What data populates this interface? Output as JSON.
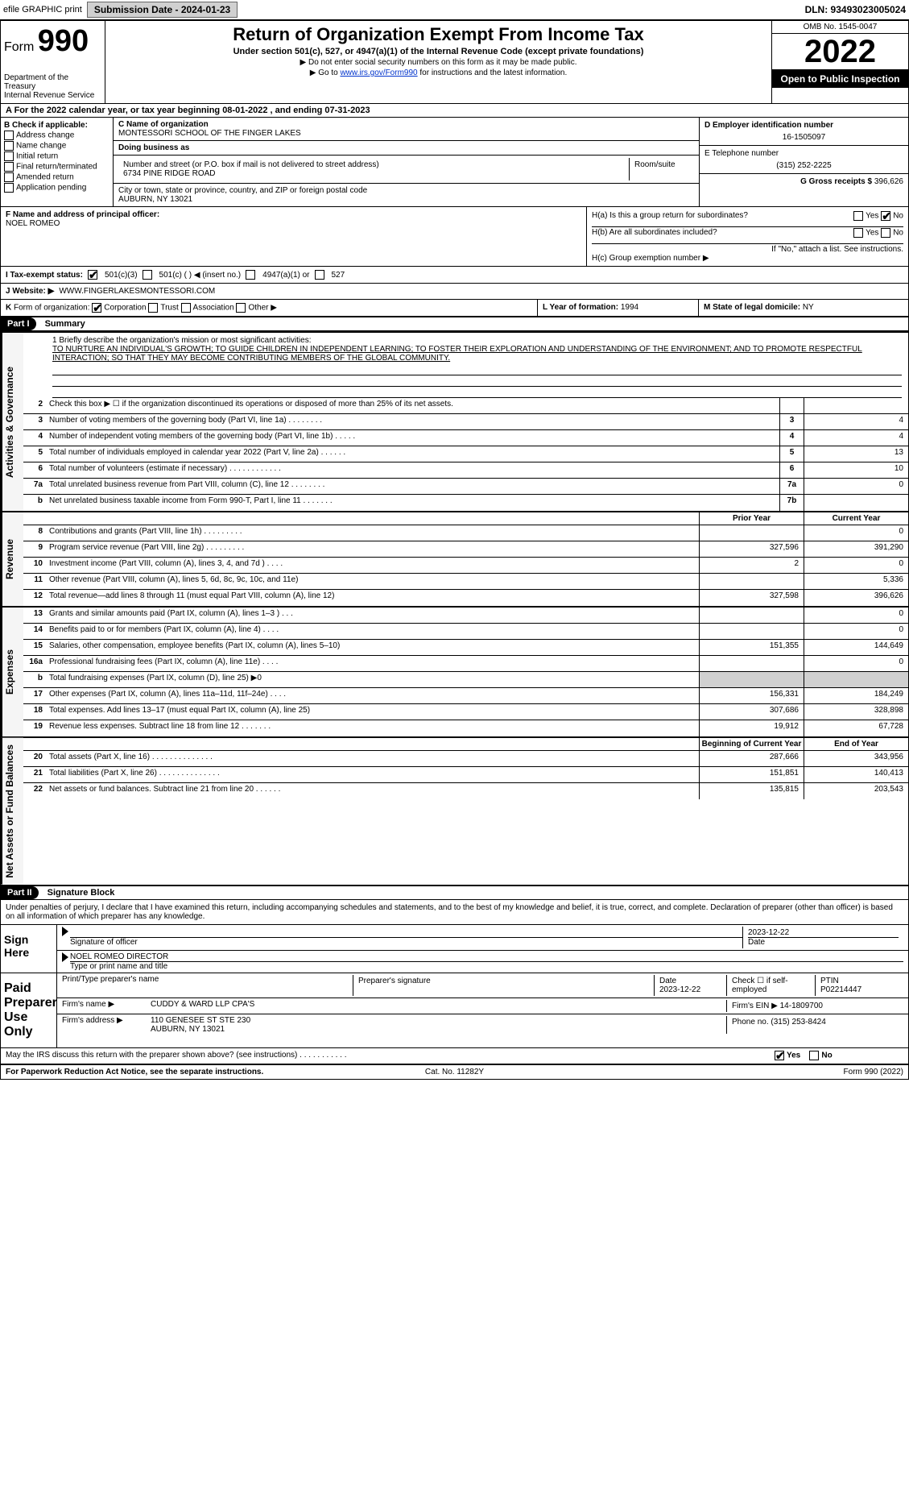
{
  "topbar": {
    "efile_label": "efile GRAPHIC print",
    "submission_btn": "Submission Date - 2024-01-23",
    "dln": "DLN: 93493023005024"
  },
  "header": {
    "form_prefix": "Form",
    "form_number": "990",
    "dept": "Department of the Treasury",
    "irs": "Internal Revenue Service",
    "title": "Return of Organization Exempt From Income Tax",
    "subtitle": "Under section 501(c), 527, or 4947(a)(1) of the Internal Revenue Code (except private foundations)",
    "note1": "▶ Do not enter social security numbers on this form as it may be made public.",
    "note2_pre": "▶ Go to ",
    "note2_link": "www.irs.gov/Form990",
    "note2_post": " for instructions and the latest information.",
    "omb": "OMB No. 1545-0047",
    "year": "2022",
    "open": "Open to Public Inspection"
  },
  "row_a": "A For the 2022 calendar year, or tax year beginning 08-01-2022    , and ending 07-31-2023",
  "box_b": {
    "title": "B Check if applicable:",
    "items": [
      "Address change",
      "Name change",
      "Initial return",
      "Final return/terminated",
      "Amended return",
      "Application pending"
    ]
  },
  "box_c": {
    "name_lbl": "C Name of organization",
    "name": "MONTESSORI SCHOOL OF THE FINGER LAKES",
    "dba_lbl": "Doing business as",
    "dba": "",
    "street_lbl": "Number and street (or P.O. box if mail is not delivered to street address)",
    "room_lbl": "Room/suite",
    "street": "6734 PINE RIDGE ROAD",
    "city_lbl": "City or town, state or province, country, and ZIP or foreign postal code",
    "city": "AUBURN, NY  13021"
  },
  "box_d": {
    "lbl": "D Employer identification number",
    "val": "16-1505097"
  },
  "box_e": {
    "lbl": "E Telephone number",
    "val": "(315) 252-2225"
  },
  "box_g": {
    "lbl": "G Gross receipts $",
    "val": "396,626"
  },
  "box_f": {
    "lbl": "F Name and address of principal officer:",
    "val": "NOEL ROMEO"
  },
  "box_h": {
    "a": "H(a)  Is this a group return for subordinates?",
    "b": "H(b)  Are all subordinates included?",
    "b2": "If \"No,\" attach a list. See instructions.",
    "c": "H(c)  Group exemption number ▶",
    "yes": "Yes",
    "no": "No"
  },
  "box_i": {
    "lbl": "I  Tax-exempt status:",
    "o1": "501(c)(3)",
    "o2": "501(c) (   ) ◀ (insert no.)",
    "o3": "4947(a)(1) or",
    "o4": "527"
  },
  "box_j": {
    "lbl": "J  Website: ▶",
    "val": "WWW.FINGERLAKESMONTESSORI.COM"
  },
  "box_k": "K Form of organization:    Corporation    Trust    Association    Other ▶",
  "box_k_corp": "Corporation",
  "box_k_trust": "Trust",
  "box_k_assoc": "Association",
  "box_k_other": "Other ▶",
  "box_l": {
    "lbl": "L Year of formation:",
    "val": "1994"
  },
  "box_m": {
    "lbl": "M State of legal domicile:",
    "val": "NY"
  },
  "part1": {
    "hdr": "Part I",
    "title": "Summary"
  },
  "mission": {
    "q": "1  Briefly describe the organization's mission or most significant activities:",
    "txt": "TO NURTURE AN INDIVIDUAL'S GROWTH; TO GUIDE CHILDREN IN INDEPENDENT LEARNING; TO FOSTER THEIR EXPLORATION AND UNDERSTANDING OF THE ENVIRONMENT; AND TO PROMOTE RESPECTFUL INTERACTION; SO THAT THEY MAY BECOME CONTRIBUTING MEMBERS OF THE GLOBAL COMMUNITY."
  },
  "side": {
    "gov": "Activities & Governance",
    "rev": "Revenue",
    "exp": "Expenses",
    "net": "Net Assets or Fund Balances"
  },
  "gov_lines": [
    {
      "n": "2",
      "t": "Check this box ▶ ☐  if the organization discontinued its operations or disposed of more than 25% of its net assets.",
      "box": "",
      "v": ""
    },
    {
      "n": "3",
      "t": "Number of voting members of the governing body (Part VI, line 1a)   .    .    .    .    .    .    .    .",
      "box": "3",
      "v": "4"
    },
    {
      "n": "4",
      "t": "Number of independent voting members of the governing body (Part VI, line 1b)   .    .    .    .    .",
      "box": "4",
      "v": "4"
    },
    {
      "n": "5",
      "t": "Total number of individuals employed in calendar year 2022 (Part V, line 2a)   .    .    .    .    .    .",
      "box": "5",
      "v": "13"
    },
    {
      "n": "6",
      "t": "Total number of volunteers (estimate if necessary)   .    .    .    .    .    .    .    .    .    .    .    .",
      "box": "6",
      "v": "10"
    },
    {
      "n": "7a",
      "t": "Total unrelated business revenue from Part VIII, column (C), line 12   .    .    .    .    .    .    .    .",
      "box": "7a",
      "v": "0"
    },
    {
      "n": "b",
      "t": "Net unrelated business taxable income from Form 990-T, Part I, line 11   .    .    .    .    .    .    .",
      "box": "7b",
      "v": ""
    }
  ],
  "col_hdrs": {
    "prior": "Prior Year",
    "current": "Current Year",
    "begin": "Beginning of Current Year",
    "end": "End of Year"
  },
  "rev_lines": [
    {
      "n": "8",
      "t": "Contributions and grants (Part VIII, line 1h)   .    .    .    .    .    .    .    .    .",
      "p": "",
      "c": "0"
    },
    {
      "n": "9",
      "t": "Program service revenue (Part VIII, line 2g)   .    .    .    .    .    .    .    .    .",
      "p": "327,596",
      "c": "391,290"
    },
    {
      "n": "10",
      "t": "Investment income (Part VIII, column (A), lines 3, 4, and 7d )   .    .    .    .",
      "p": "2",
      "c": "0"
    },
    {
      "n": "11",
      "t": "Other revenue (Part VIII, column (A), lines 5, 6d, 8c, 9c, 10c, and 11e)",
      "p": "",
      "c": "5,336"
    },
    {
      "n": "12",
      "t": "Total revenue—add lines 8 through 11 (must equal Part VIII, column (A), line 12)",
      "p": "327,598",
      "c": "396,626"
    }
  ],
  "exp_lines": [
    {
      "n": "13",
      "t": "Grants and similar amounts paid (Part IX, column (A), lines 1–3 )   .    .    .",
      "p": "",
      "c": "0"
    },
    {
      "n": "14",
      "t": "Benefits paid to or for members (Part IX, column (A), line 4)   .    .    .    .",
      "p": "",
      "c": "0"
    },
    {
      "n": "15",
      "t": "Salaries, other compensation, employee benefits (Part IX, column (A), lines 5–10)",
      "p": "151,355",
      "c": "144,649"
    },
    {
      "n": "16a",
      "t": "Professional fundraising fees (Part IX, column (A), line 11e)   .    .    .    .",
      "p": "",
      "c": "0"
    },
    {
      "n": "b",
      "t": "Total fundraising expenses (Part IX, column (D), line 25) ▶0",
      "p": "shade",
      "c": "shade"
    },
    {
      "n": "17",
      "t": "Other expenses (Part IX, column (A), lines 11a–11d, 11f–24e)   .    .    .    .",
      "p": "156,331",
      "c": "184,249"
    },
    {
      "n": "18",
      "t": "Total expenses. Add lines 13–17 (must equal Part IX, column (A), line 25)",
      "p": "307,686",
      "c": "328,898"
    },
    {
      "n": "19",
      "t": "Revenue less expenses. Subtract line 18 from line 12   .    .    .    .    .    .    .",
      "p": "19,912",
      "c": "67,728"
    }
  ],
  "net_lines": [
    {
      "n": "20",
      "t": "Total assets (Part X, line 16)   .    .    .    .    .    .    .    .    .    .    .    .    .    .",
      "p": "287,666",
      "c": "343,956"
    },
    {
      "n": "21",
      "t": "Total liabilities (Part X, line 26)   .    .    .    .    .    .    .    .    .    .    .    .    .    .",
      "p": "151,851",
      "c": "140,413"
    },
    {
      "n": "22",
      "t": "Net assets or fund balances. Subtract line 21 from line 20   .    .    .    .    .    .",
      "p": "135,815",
      "c": "203,543"
    }
  ],
  "part2": {
    "hdr": "Part II",
    "title": "Signature Block"
  },
  "decl": "Under penalties of perjury, I declare that I have examined this return, including accompanying schedules and statements, and to the best of my knowledge and belief, it is true, correct, and complete. Declaration of preparer (other than officer) is based on all information of which preparer has any knowledge.",
  "sign": {
    "left": "Sign Here",
    "sig_lbl": "Signature of officer",
    "date": "2023-12-22",
    "date_lbl": "Date",
    "name": "NOEL ROMEO  DIRECTOR",
    "name_lbl": "Type or print name and title"
  },
  "paid": {
    "left": "Paid Preparer Use Only",
    "h1": "Print/Type preparer's name",
    "h2": "Preparer's signature",
    "h3": "Date",
    "h4": "Check ☐ if self-employed",
    "h5": "PTIN",
    "date": "2023-12-22",
    "ptin": "P02214447",
    "firm_lbl": "Firm's name    ▶",
    "firm": "CUDDY & WARD LLP CPA'S",
    "ein_lbl": "Firm's EIN ▶",
    "ein": "14-1809700",
    "addr_lbl": "Firm's address ▶",
    "addr1": "110 GENESEE ST STE 230",
    "addr2": "AUBURN, NY  13021",
    "phone_lbl": "Phone no.",
    "phone": "(315) 253-8424"
  },
  "may_discuss": "May the IRS discuss this return with the preparer shown above? (see instructions)   .    .    .    .    .    .    .    .    .    .    .",
  "footer": {
    "l": "For Paperwork Reduction Act Notice, see the separate instructions.",
    "m": "Cat. No. 11282Y",
    "r": "Form 990 (2022)"
  }
}
